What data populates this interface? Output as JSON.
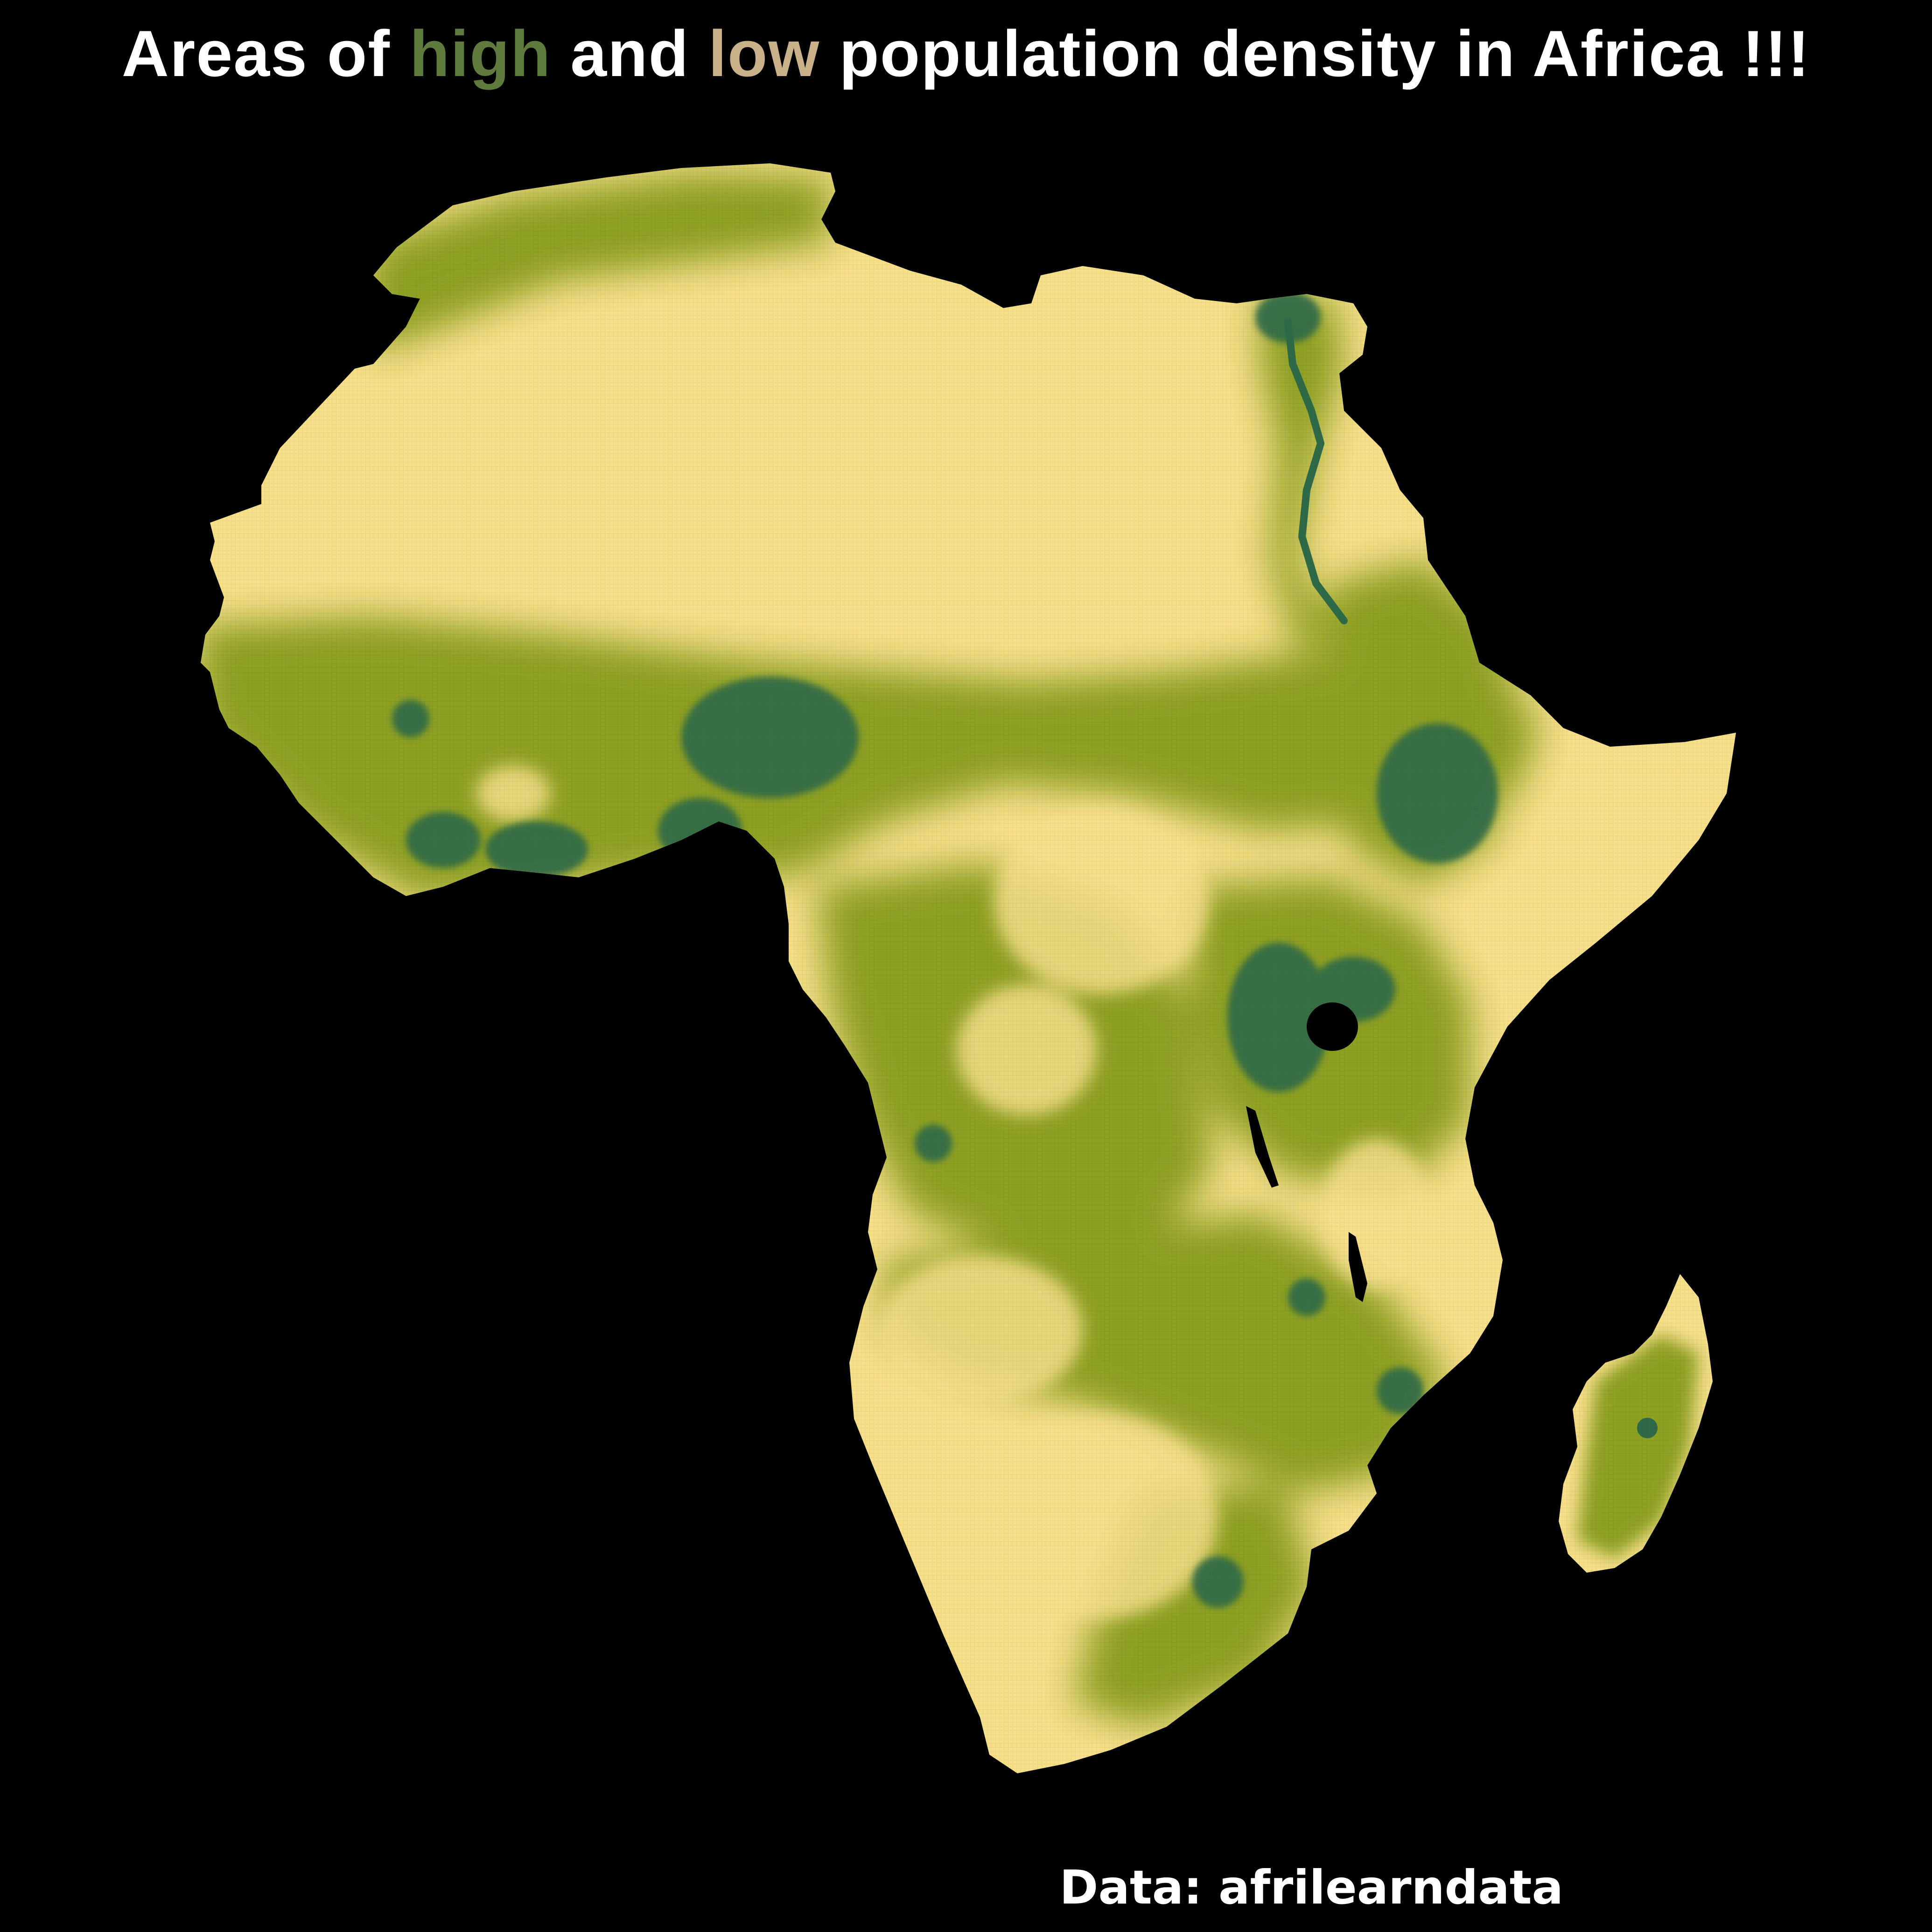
{
  "title": {
    "part1": "Areas of ",
    "high_word": "high",
    "part2": " and ",
    "low_word": "low",
    "part3": " population density in Africa !!!"
  },
  "caption": "Data: afrilearndata",
  "colors": {
    "background": "#000000",
    "title_text": "#ffffff",
    "high_word": "#5e7a3c",
    "low_word": "#c8b088",
    "low_density_fill": "#f7e08a",
    "medium_density_fill": "#8ea020",
    "high_density_fill": "#2f6a48",
    "lake_fill": "#000000"
  },
  "map": {
    "subject": "Africa population density raster",
    "legend": "none"
  }
}
